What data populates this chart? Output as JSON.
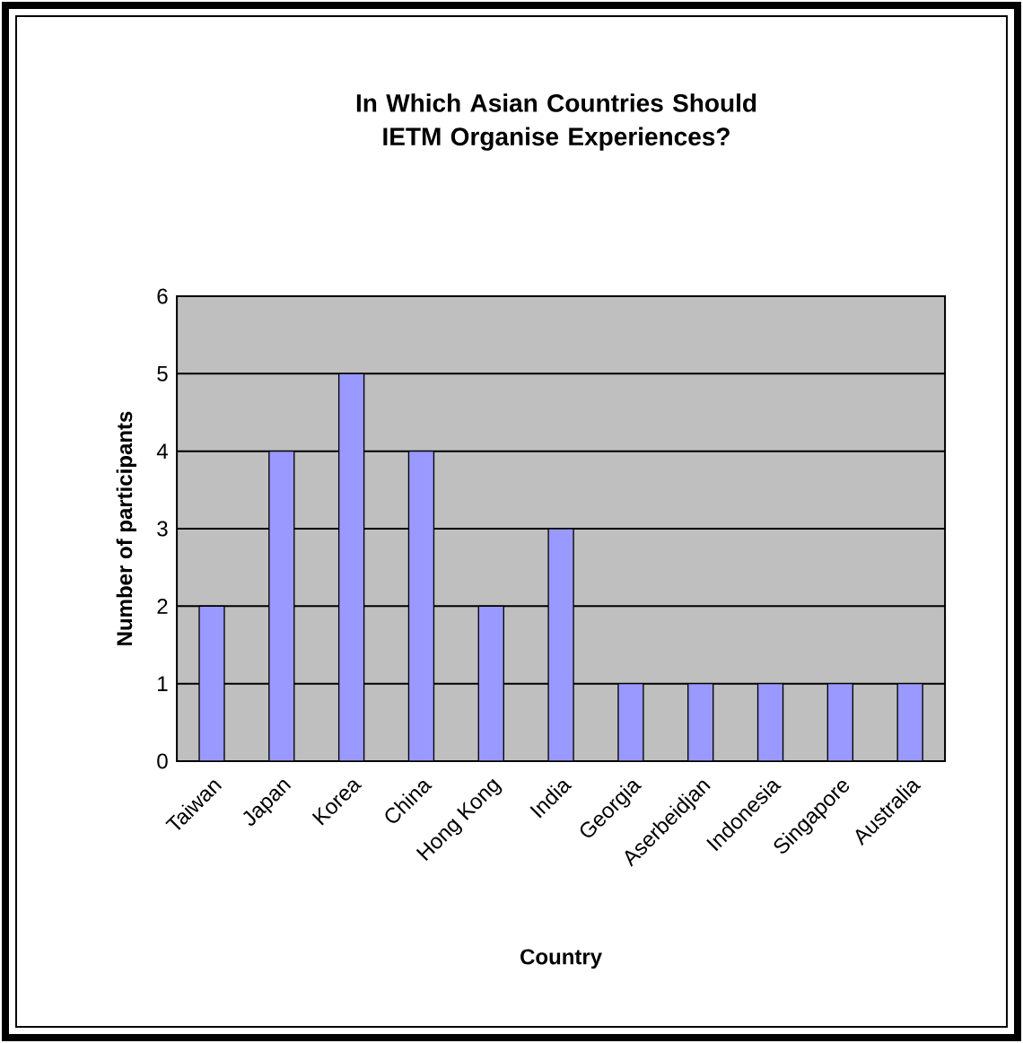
{
  "chart_data": {
    "type": "bar",
    "title": "In Which Asian Countries Should IETM Organise Experiences?",
    "xlabel": "Country",
    "ylabel": "Number of participants",
    "categories": [
      "Taiwan",
      "Japan",
      "Korea",
      "China",
      "Hong Kong",
      "India",
      "Georgia",
      "Aserbeidjan",
      "Indonesia",
      "Singapore",
      "Australia"
    ],
    "values": [
      2,
      4,
      5,
      4,
      2,
      3,
      1,
      1,
      1,
      1,
      1
    ],
    "color": "#9999ff",
    "ylim": [
      0,
      6
    ],
    "yticks": [
      0,
      1,
      2,
      3,
      4,
      5,
      6
    ],
    "grid": "y"
  }
}
